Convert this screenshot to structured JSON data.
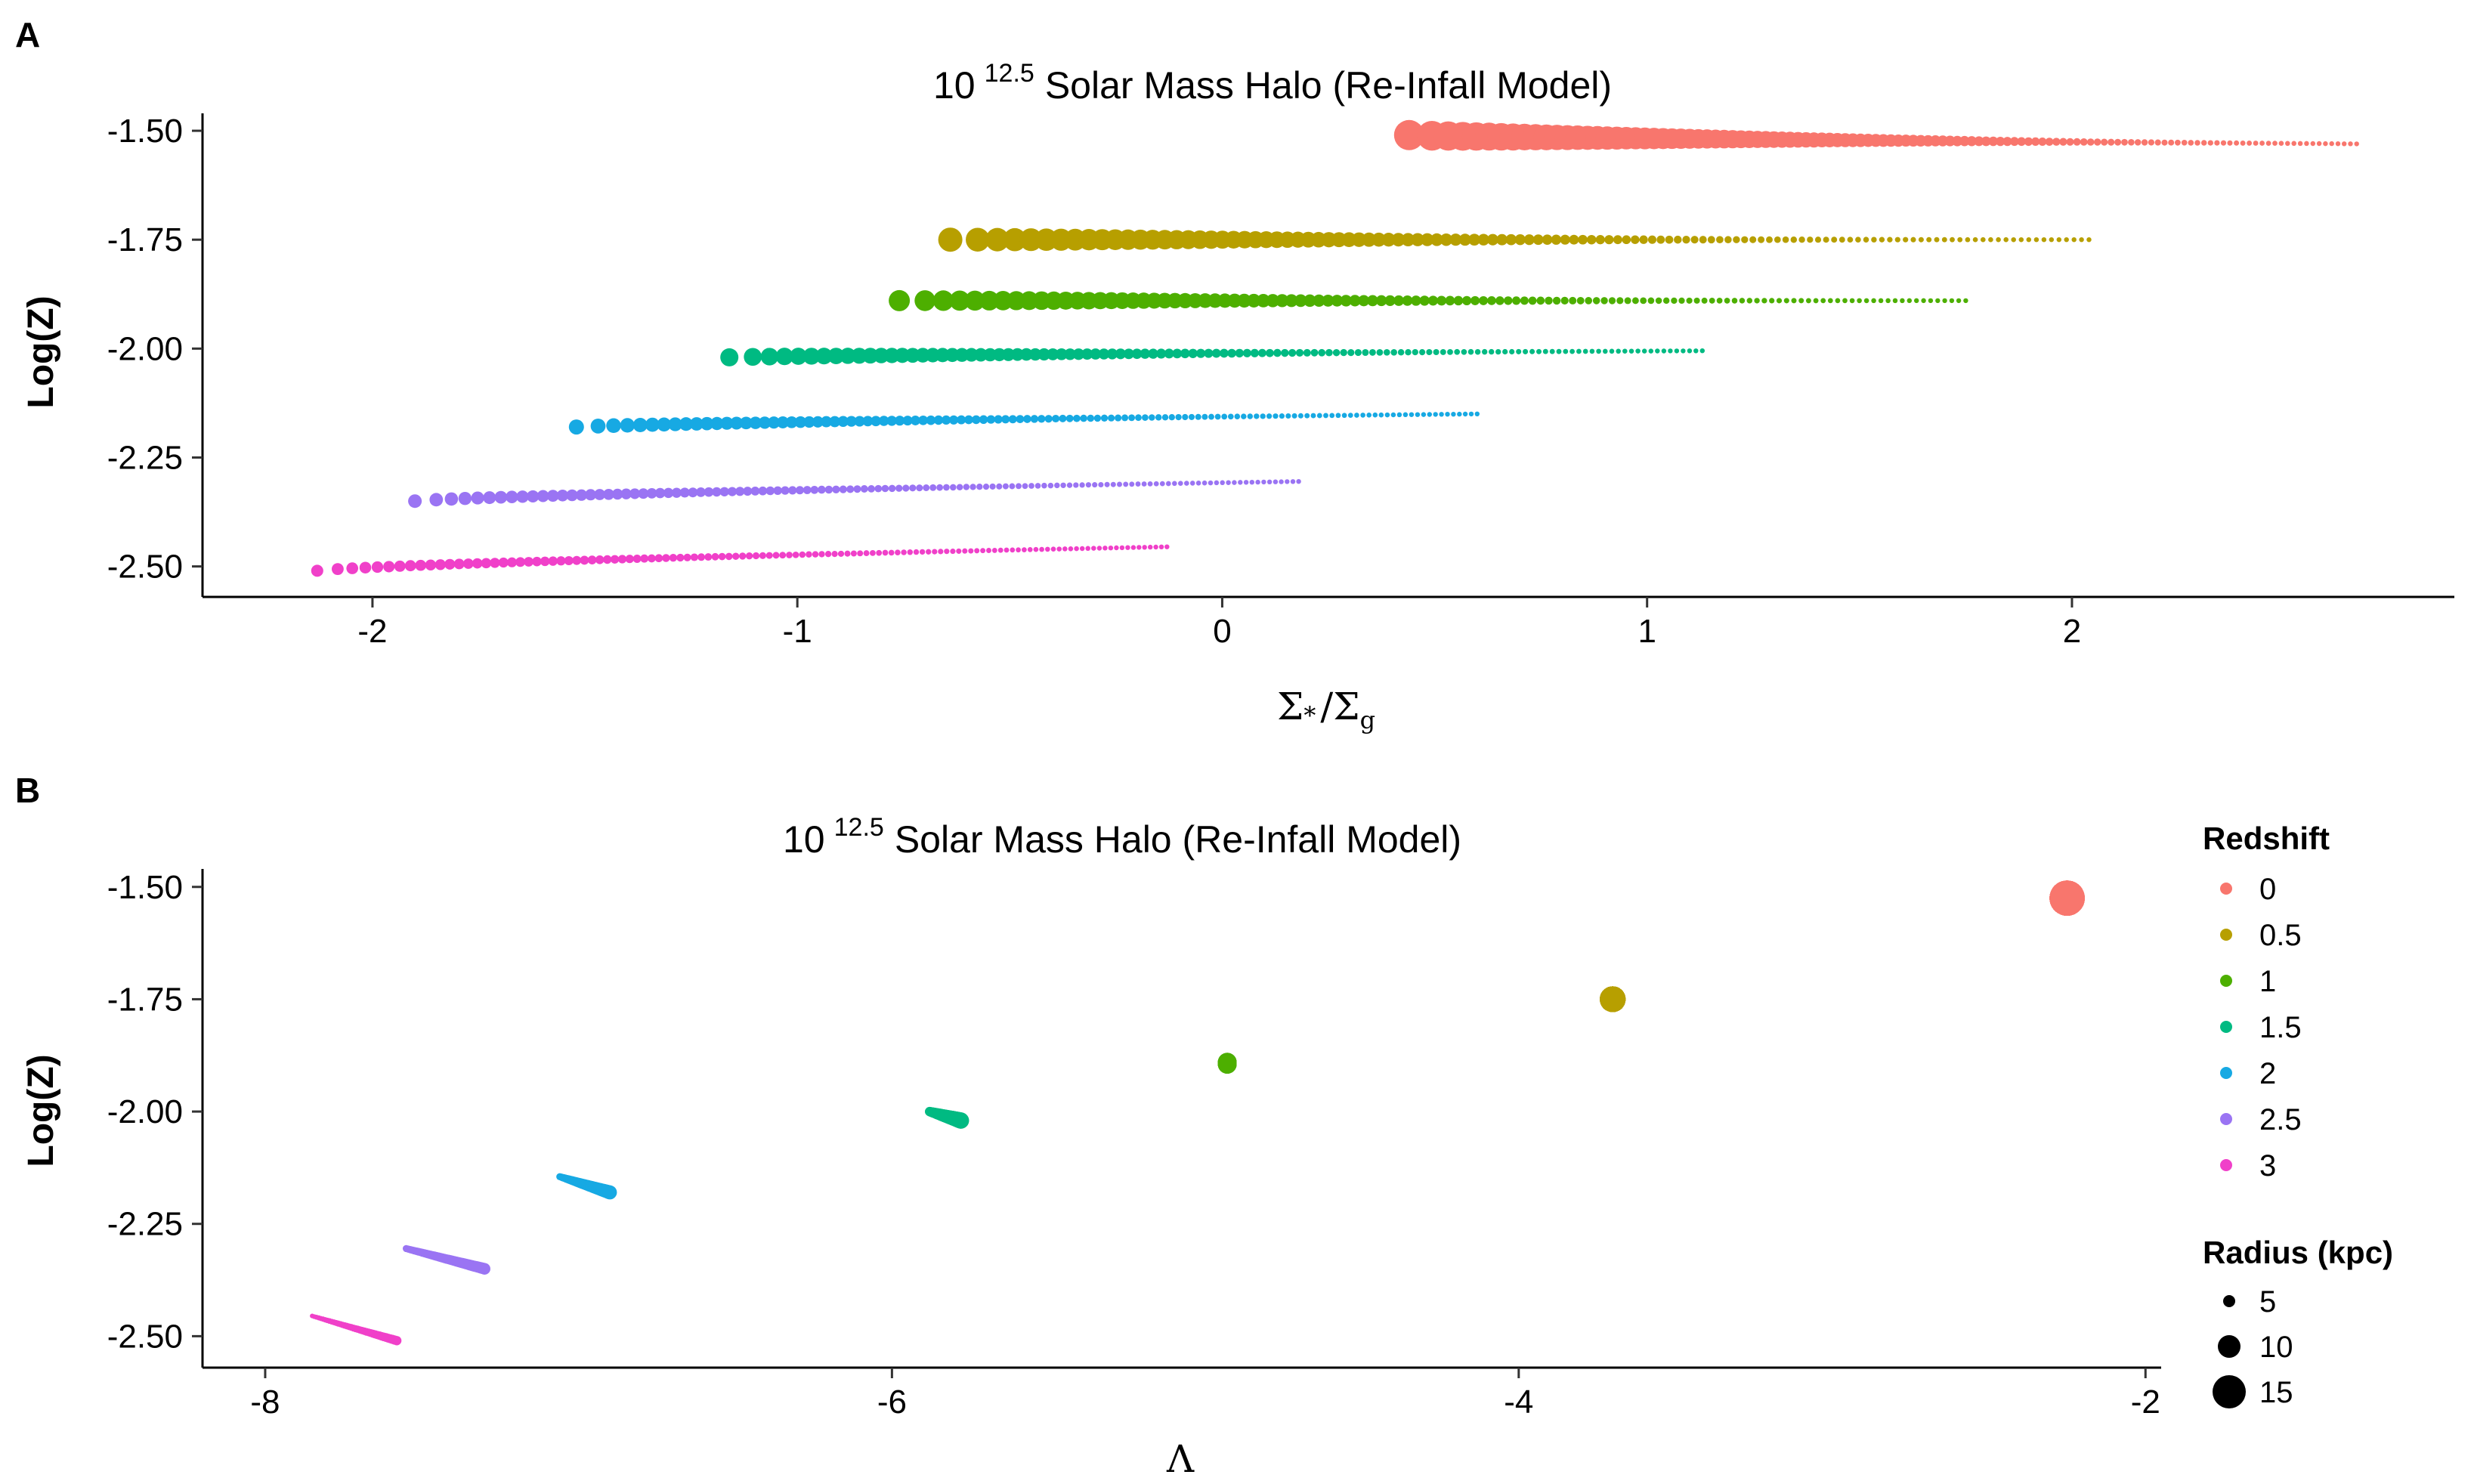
{
  "chart_data": [
    {
      "type": "scatter",
      "panel_label": "A",
      "title_base": "10",
      "title_exponent": "12.5",
      "title_rest": "Solar Mass Halo (Re-Infall Model)",
      "xlabel": "Σ*/Σg",
      "xlabel_parts": {
        "sym1": "Σ",
        "sub1": "*",
        "slash": "/",
        "sym2": "Σ",
        "sub2": "g"
      },
      "ylabel": "Log(Z)",
      "xlim": [
        -2.4,
        2.9
      ],
      "ylim": [
        -2.57,
        -1.46
      ],
      "x_ticks": [
        -2,
        -1,
        0,
        1,
        2
      ],
      "x_tick_labels": [
        "-2",
        "-1",
        "0",
        "1",
        "2"
      ],
      "y_ticks": [
        -1.5,
        -1.75,
        -2.0,
        -2.25,
        -2.5
      ],
      "y_tick_labels": [
        "-1.50",
        "-1.75",
        "-2.00",
        "-2.25",
        "-2.50"
      ],
      "grid": false,
      "series": [
        {
          "name": "0",
          "color": "#F8766D",
          "x_start": 0.44,
          "x_end": 2.67,
          "y_start": -1.51,
          "y_end": -1.53,
          "n_points": 120
        },
        {
          "name": "0.5",
          "color": "#B79F00",
          "x_start": -0.64,
          "x_end": 2.04,
          "y_start": -1.75,
          "y_end": -1.75,
          "n_points": 120
        },
        {
          "name": "1",
          "color": "#4DAF00",
          "x_start": -0.76,
          "x_end": 1.75,
          "y_start": -1.89,
          "y_end": -1.89,
          "n_points": 120
        },
        {
          "name": "1.5",
          "color": "#00BA82",
          "x_start": -1.16,
          "x_end": 1.13,
          "y_start": -2.02,
          "y_end": -2.005,
          "n_points": 120
        },
        {
          "name": "2",
          "color": "#17A9E3",
          "x_start": -1.52,
          "x_end": 0.6,
          "y_start": -2.18,
          "y_end": -2.15,
          "n_points": 120
        },
        {
          "name": "2.5",
          "color": "#9A74F3",
          "x_start": -1.9,
          "x_end": 0.18,
          "y_start": -2.35,
          "y_end": -2.305,
          "n_points": 120
        },
        {
          "name": "3",
          "color": "#F040C9",
          "x_start": -2.13,
          "x_end": -0.13,
          "y_start": -2.51,
          "y_end": -2.455,
          "n_points": 120
        }
      ]
    },
    {
      "type": "scatter",
      "panel_label": "B",
      "title_base": "10",
      "title_exponent": "12.5",
      "title_rest": "Solar Mass Halo (Re-Infall Model)",
      "xlabel": "Λ",
      "ylabel": "Log(Z)",
      "xlim": [
        -8.2,
        -1.95
      ],
      "ylim": [
        -2.57,
        -1.46
      ],
      "x_ticks": [
        -8,
        -6,
        -4,
        -2
      ],
      "x_tick_labels": [
        "-8",
        "-6",
        "-4",
        "-2"
      ],
      "y_ticks": [
        -1.5,
        -1.75,
        -2.0,
        -2.25,
        -2.5
      ],
      "y_tick_labels": [
        "-1.50",
        "-1.75",
        "-2.00",
        "-2.25",
        "-2.50"
      ],
      "grid": false,
      "series": [
        {
          "name": "0",
          "color": "#F8766D",
          "x_start": -2.25,
          "x_end": -2.25,
          "y_start": -1.525,
          "y_end": -1.525,
          "r_start": 15,
          "r_end": 15
        },
        {
          "name": "0.5",
          "color": "#B79F00",
          "x_start": -3.7,
          "x_end": -3.7,
          "y_start": -1.75,
          "y_end": -1.75,
          "r_start": 11,
          "r_end": 11
        },
        {
          "name": "1",
          "color": "#4DAF00",
          "x_start": -4.93,
          "x_end": -4.93,
          "y_start": -1.89,
          "y_end": -1.895,
          "r_start": 8,
          "r_end": 8
        },
        {
          "name": "1.5",
          "color": "#00BA82",
          "x_start": -5.88,
          "x_end": -5.78,
          "y_start": -2.0,
          "y_end": -2.02,
          "r_start": 4,
          "r_end": 7
        },
        {
          "name": "2",
          "color": "#17A9E3",
          "x_start": -7.06,
          "x_end": -6.9,
          "y_start": -2.145,
          "y_end": -2.18,
          "r_start": 3,
          "r_end": 6
        },
        {
          "name": "2.5",
          "color": "#9A74F3",
          "x_start": -7.55,
          "x_end": -7.3,
          "y_start": -2.305,
          "y_end": -2.35,
          "r_start": 3,
          "r_end": 5
        },
        {
          "name": "3",
          "color": "#F040C9",
          "x_start": -7.85,
          "x_end": -7.58,
          "y_start": -2.455,
          "y_end": -2.51,
          "r_start": 2,
          "r_end": 4
        }
      ]
    }
  ],
  "legend": {
    "placement": "right",
    "redshift_title": "Redshift",
    "redshift_items": [
      {
        "label": "0",
        "color": "#F8766D"
      },
      {
        "label": "0.5",
        "color": "#B79F00"
      },
      {
        "label": "1",
        "color": "#4DAF00"
      },
      {
        "label": "1.5",
        "color": "#00BA82"
      },
      {
        "label": "2",
        "color": "#17A9E3"
      },
      {
        "label": "2.5",
        "color": "#9A74F3"
      },
      {
        "label": "3",
        "color": "#F040C9"
      }
    ],
    "radius_title": "Radius (kpc)",
    "radius_items": [
      {
        "label": "5",
        "size": 5
      },
      {
        "label": "10",
        "size": 10
      },
      {
        "label": "15",
        "size": 15
      }
    ]
  }
}
